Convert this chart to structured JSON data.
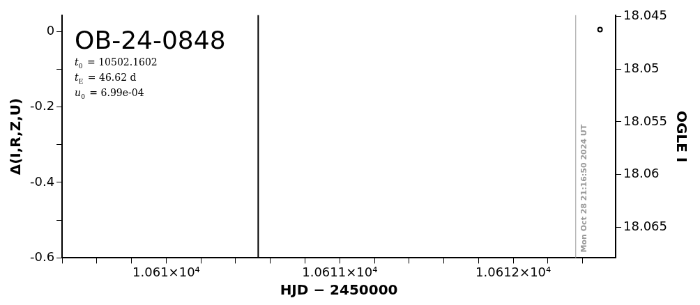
{
  "chart_data": {
    "type": "scatter",
    "title": "OB-24-0848",
    "xlabel": "HJD − 2450000",
    "ylabel": "Δ(I,R,Z,U)",
    "y2label": "OGLE I",
    "annotations": [
      "t$_{0}$ = 10502.1602",
      "t$_{E}$ = 46.62 d",
      "u$_{0}$ = 6.99e-04",
      "Mon Oct 28 21:16:50 2024 UT"
    ],
    "x": [
      10612.5
    ],
    "series": [
      {
        "color": "#000000",
        "values": [
          0.005
        ]
      }
    ],
    "marker": "circle",
    "grid": false,
    "legend": false,
    "xlim": [
      10609.4,
      10612.59
    ],
    "xticks": [
      {
        "value": 10609.4,
        "label": null
      },
      {
        "value": 10609.6,
        "label": null
      },
      {
        "value": 10609.8,
        "label": null
      },
      {
        "value": 10610,
        "label": "1.061×10⁴"
      },
      {
        "value": 10610.2,
        "label": null
      },
      {
        "value": 10610.4,
        "label": null
      },
      {
        "value": 10610.6,
        "label": null
      },
      {
        "value": 10610.8,
        "label": null
      },
      {
        "value": 10611,
        "label": "1.0611×10⁴"
      },
      {
        "value": 10611.2,
        "label": null
      },
      {
        "value": 10611.4,
        "label": null
      },
      {
        "value": 10611.6,
        "label": null
      },
      {
        "value": 10611.8,
        "label": null
      },
      {
        "value": 10612,
        "label": "1.0612×10⁴"
      },
      {
        "value": 10612.2,
        "label": null
      },
      {
        "value": 10612.4,
        "label": null
      }
    ],
    "ylim": [
      -0.6,
      0.043
    ],
    "yticks": [
      {
        "value": -0.6,
        "label": "-0.6"
      },
      {
        "value": -0.5,
        "label": null
      },
      {
        "value": -0.4,
        "label": "-0.4"
      },
      {
        "value": -0.3,
        "label": null
      },
      {
        "value": -0.2,
        "label": "-0.2"
      },
      {
        "value": -0.1,
        "label": null
      },
      {
        "value": 0,
        "label": "0"
      }
    ],
    "y2lim": [
      18.0679,
      18.0449
    ],
    "y2ticks": [
      18.045,
      18.05,
      18.055,
      18.06,
      18.065
    ],
    "ref_lines": [
      {
        "axis": "x",
        "value": 10610.53,
        "color": "#000000"
      },
      {
        "axis": "x",
        "value": 10612.36,
        "color": "#999999"
      }
    ]
  }
}
